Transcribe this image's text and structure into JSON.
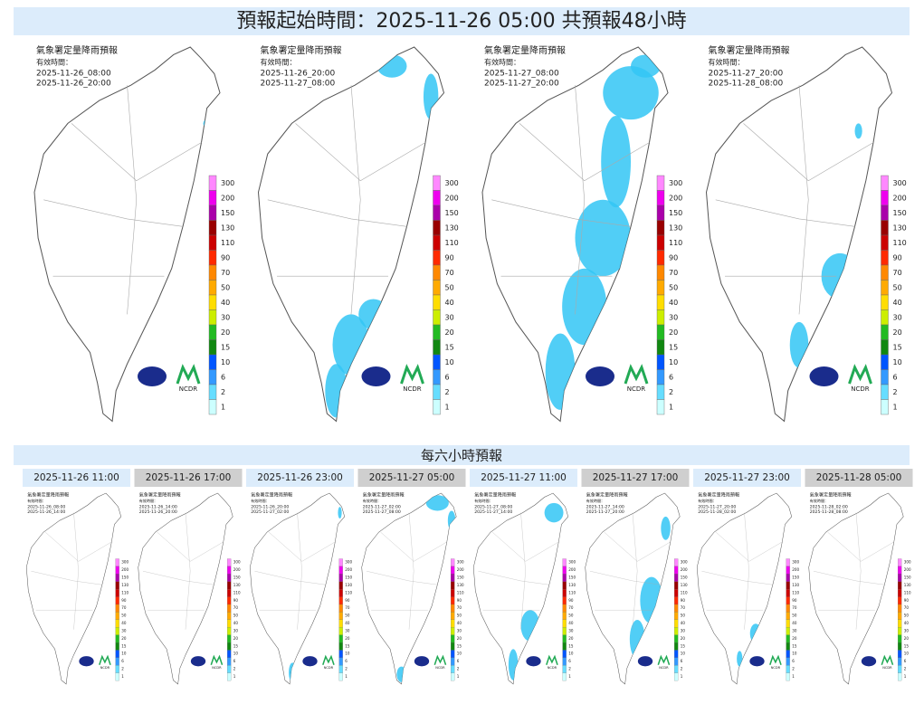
{
  "title": "預報起始時間：2025-11-26 05:00  共預報48小時",
  "panels": [
    {
      "agency": "氣象署定量降雨預報",
      "valid_label": "有效時間：",
      "start": "2025-11-26_08:00",
      "end": "2025-11-26_20:00"
    },
    {
      "agency": "氣象署定量降雨預報",
      "valid_label": "有效時間：",
      "start": "2025-11-26_20:00",
      "end": "2025-11-27_08:00"
    },
    {
      "agency": "氣象署定量降雨預報",
      "valid_label": "有效時間：",
      "start": "2025-11-27_08:00",
      "end": "2025-11-27_20:00"
    },
    {
      "agency": "氣象署定量降雨預報",
      "valid_label": "有效時間：",
      "start": "2025-11-27_20:00",
      "end": "2025-11-28_08:00"
    }
  ],
  "legend": [
    300,
    200,
    150,
    130,
    110,
    90,
    70,
    50,
    40,
    30,
    20,
    15,
    10,
    6,
    2,
    1
  ],
  "logo_text": "NCDR",
  "section_title": "每六小時預報",
  "six_hour": [
    {
      "label": "2025-11-26 11:00",
      "agency": "氣象署定量降雨預報",
      "valid_label": "有效時間：",
      "start": "2025-11-26_08:00",
      "end": "2025-11-26_14:00"
    },
    {
      "label": "2025-11-26 17:00",
      "agency": "氣象署定量降雨預報",
      "valid_label": "有效時間：",
      "start": "2025-11-26_14:00",
      "end": "2025-11-26_20:00"
    },
    {
      "label": "2025-11-26 23:00",
      "agency": "氣象署定量降雨預報",
      "valid_label": "有效時間：",
      "start": "2025-11-26_20:00",
      "end": "2025-11-27_02:00"
    },
    {
      "label": "2025-11-27 05:00",
      "agency": "氣象署定量降雨預報",
      "valid_label": "有效時間：",
      "start": "2025-11-27_02:00",
      "end": "2025-11-27_08:00"
    },
    {
      "label": "2025-11-27 11:00",
      "agency": "氣象署定量降雨預報",
      "valid_label": "有效時間：",
      "start": "2025-11-27_08:00",
      "end": "2025-11-27_14:00"
    },
    {
      "label": "2025-11-27 17:00",
      "agency": "氣象署定量降雨預報",
      "valid_label": "有效時間：",
      "start": "2025-11-27_14:00",
      "end": "2025-11-27_20:00"
    },
    {
      "label": "2025-11-27 23:00",
      "agency": "氣象署定量降雨預報",
      "valid_label": "有效時間：",
      "start": "2025-11-27_20:00",
      "end": "2025-11-28_02:00"
    },
    {
      "label": "2025-11-28 05:00",
      "agency": "氣象署定量降雨預報",
      "valid_label": "有效時間：",
      "start": "2025-11-28_02:00",
      "end": "2025-11-28_08:00"
    }
  ]
}
